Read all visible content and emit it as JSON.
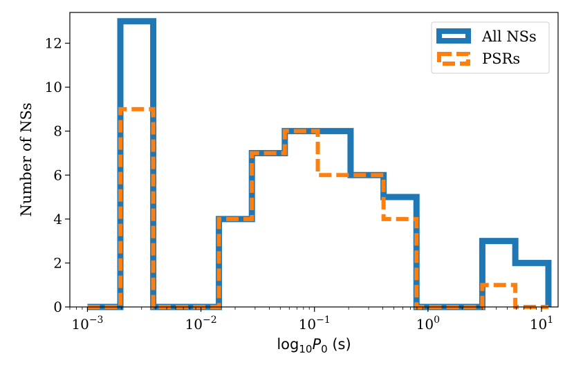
{
  "chart_data": {
    "type": "histogram",
    "xlabel": {
      "prefix": "log",
      "sub": "10",
      "var": "P",
      "var_sub": "0",
      "unit": " (s)"
    },
    "ylabel": "Number of NSs",
    "xscale": "log",
    "xlim": [
      0.0007,
      14
    ],
    "ylim": [
      0,
      13.4
    ],
    "yticks": [
      0,
      2,
      4,
      6,
      8,
      10,
      12
    ],
    "xticks": [
      {
        "value": 0.001,
        "base": "10",
        "exp": "−3"
      },
      {
        "value": 0.01,
        "base": "10",
        "exp": "−2"
      },
      {
        "value": 0.1,
        "base": "10",
        "exp": "−1"
      },
      {
        "value": 1,
        "base": "10",
        "exp": "0"
      },
      {
        "value": 10,
        "base": "10",
        "exp": "1"
      }
    ],
    "bin_edges": [
      0.001,
      0.00195,
      0.0038,
      0.0074,
      0.0144,
      0.0281,
      0.0548,
      0.107,
      0.208,
      0.406,
      0.792,
      1.545,
      3.01,
      5.88,
      11.5
    ],
    "series": [
      {
        "name": "All NSs",
        "color": "#1f77b4",
        "style": "solid",
        "counts": [
          0,
          13,
          0,
          0,
          4,
          7,
          8,
          8,
          6,
          5,
          0,
          0,
          3,
          2
        ]
      },
      {
        "name": "PSRs",
        "color": "#ff7f0e",
        "style": "dashed",
        "counts": [
          0,
          9,
          0,
          0,
          4,
          7,
          8,
          6,
          6,
          4,
          0,
          0,
          1,
          0
        ]
      }
    ],
    "legend": {
      "position": "top-right"
    },
    "grid": false
  }
}
